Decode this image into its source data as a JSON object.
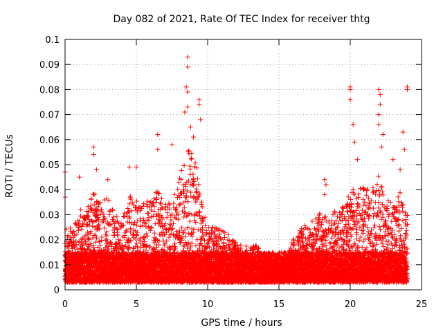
{
  "chart_data": {
    "type": "scatter",
    "title": "Day 082 of 2021, Rate Of TEC Index for receiver thtg",
    "xlabel": "GPS time / hours",
    "ylabel": "ROTI / TECUs",
    "xlim": [
      0,
      25
    ],
    "ylim": [
      0,
      0.1
    ],
    "x_ticks": [
      "0",
      "5",
      "10",
      "15",
      "20",
      "25"
    ],
    "y_ticks": [
      "0",
      "0.01",
      "0.02",
      "0.03",
      "0.04",
      "0.05",
      "0.06",
      "0.07",
      "0.08",
      "0.09",
      "0.1"
    ],
    "grid": true,
    "marker": "+",
    "series_color": "#ff0000",
    "series": [
      {
        "name": "ROTI",
        "note": "dense point cloud approximated by upper envelope (hour, ROTI)",
        "envelope": [
          [
            0.0,
            0.024
          ],
          [
            0.5,
            0.027
          ],
          [
            1.0,
            0.03
          ],
          [
            1.5,
            0.032
          ],
          [
            2.0,
            0.04
          ],
          [
            2.5,
            0.035
          ],
          [
            3.0,
            0.037
          ],
          [
            3.5,
            0.03
          ],
          [
            4.0,
            0.03
          ],
          [
            4.5,
            0.038
          ],
          [
            5.0,
            0.036
          ],
          [
            5.5,
            0.035
          ],
          [
            6.0,
            0.037
          ],
          [
            6.5,
            0.04
          ],
          [
            7.0,
            0.034
          ],
          [
            7.5,
            0.036
          ],
          [
            8.0,
            0.045
          ],
          [
            8.5,
            0.06
          ],
          [
            9.0,
            0.058
          ],
          [
            9.5,
            0.04
          ],
          [
            10.0,
            0.026
          ],
          [
            10.5,
            0.025
          ],
          [
            11.0,
            0.024
          ],
          [
            11.5,
            0.022
          ],
          [
            12.0,
            0.02
          ],
          [
            12.5,
            0.018
          ],
          [
            13.0,
            0.017
          ],
          [
            13.5,
            0.018
          ],
          [
            14.0,
            0.014
          ],
          [
            14.5,
            0.014
          ],
          [
            15.0,
            0.013
          ],
          [
            15.5,
            0.013
          ],
          [
            16.0,
            0.02
          ],
          [
            16.5,
            0.024
          ],
          [
            17.0,
            0.027
          ],
          [
            17.5,
            0.028
          ],
          [
            18.0,
            0.032
          ],
          [
            18.5,
            0.03
          ],
          [
            19.0,
            0.032
          ],
          [
            19.5,
            0.035
          ],
          [
            20.0,
            0.042
          ],
          [
            20.5,
            0.04
          ],
          [
            21.0,
            0.042
          ],
          [
            21.5,
            0.04
          ],
          [
            22.0,
            0.046
          ],
          [
            22.5,
            0.038
          ],
          [
            23.0,
            0.034
          ],
          [
            23.5,
            0.04
          ],
          [
            24.0,
            0.03
          ]
        ],
        "outliers": [
          [
            0.0,
            0.047
          ],
          [
            0.0,
            0.037
          ],
          [
            1.0,
            0.045
          ],
          [
            1.1,
            0.032
          ],
          [
            2.0,
            0.057
          ],
          [
            2.0,
            0.054
          ],
          [
            2.2,
            0.048
          ],
          [
            3.0,
            0.044
          ],
          [
            4.5,
            0.049
          ],
          [
            5.0,
            0.049
          ],
          [
            6.5,
            0.062
          ],
          [
            6.5,
            0.056
          ],
          [
            7.5,
            0.058
          ],
          [
            8.6,
            0.093
          ],
          [
            8.6,
            0.089
          ],
          [
            8.5,
            0.081
          ],
          [
            8.6,
            0.079
          ],
          [
            8.6,
            0.073
          ],
          [
            8.4,
            0.071
          ],
          [
            9.4,
            0.076
          ],
          [
            9.4,
            0.074
          ],
          [
            9.5,
            0.068
          ],
          [
            8.8,
            0.065
          ],
          [
            9.0,
            0.061
          ],
          [
            18.2,
            0.044
          ],
          [
            18.3,
            0.042
          ],
          [
            18.2,
            0.038
          ],
          [
            20.0,
            0.081
          ],
          [
            20.0,
            0.08
          ],
          [
            20.0,
            0.076
          ],
          [
            20.2,
            0.066
          ],
          [
            20.3,
            0.059
          ],
          [
            20.5,
            0.052
          ],
          [
            22.0,
            0.08
          ],
          [
            22.1,
            0.078
          ],
          [
            22.1,
            0.074
          ],
          [
            22.0,
            0.07
          ],
          [
            22.0,
            0.066
          ],
          [
            22.3,
            0.062
          ],
          [
            22.2,
            0.057
          ],
          [
            23.0,
            0.052
          ],
          [
            23.7,
            0.063
          ],
          [
            23.8,
            0.056
          ],
          [
            24.0,
            0.081
          ],
          [
            24.0,
            0.08
          ],
          [
            23.5,
            0.048
          ]
        ]
      }
    ]
  }
}
